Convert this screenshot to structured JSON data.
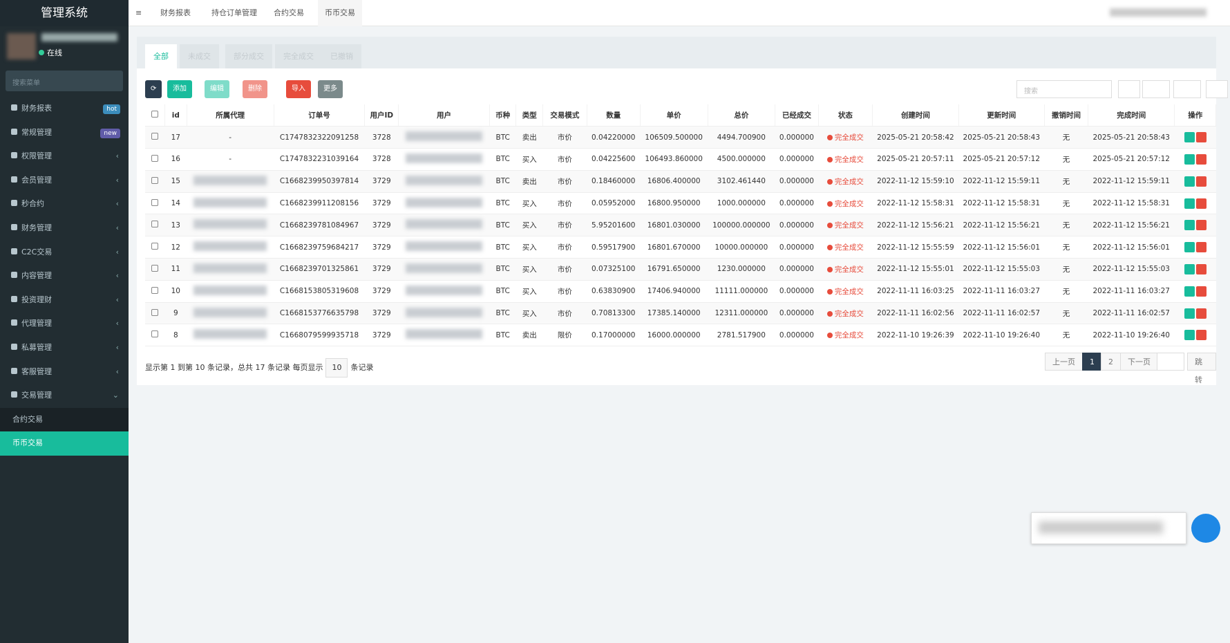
{
  "sidebar": {
    "title": "管理系统",
    "status": "在线",
    "search_placeholder": "搜索菜单",
    "menu": [
      {
        "label": "财务报表",
        "badge": "hot"
      },
      {
        "label": "常规管理",
        "badge": "new"
      },
      {
        "label": "权限管理"
      },
      {
        "label": "会员管理"
      },
      {
        "label": "秒合约"
      },
      {
        "label": "财务管理"
      },
      {
        "label": "C2C交易"
      },
      {
        "label": "内容管理"
      },
      {
        "label": "投资理财"
      },
      {
        "label": "代理管理"
      },
      {
        "label": "私募管理"
      },
      {
        "label": "客服管理"
      },
      {
        "label": "交易管理"
      }
    ],
    "submenu": [
      "合约交易",
      "币币交易"
    ]
  },
  "topbar": {
    "tabs": [
      "财务报表",
      "持仓订单管理",
      "合约交易",
      "币币交易"
    ]
  },
  "filter_tabs": [
    "全部",
    "未成交",
    "部分成交",
    "完全成交",
    "已撤销"
  ],
  "toolbar": {
    "buttons": [
      "添加",
      "编辑",
      "删除",
      "导入",
      "更多"
    ],
    "search_placeholder": "搜索"
  },
  "table": {
    "columns": [
      "id",
      "所属代理",
      "订单号",
      "用户ID",
      "用户",
      "币种",
      "类型",
      "交易模式",
      "数量",
      "单价",
      "总价",
      "已经成交",
      "状态",
      "创建时间",
      "更新时间",
      "撤销时间",
      "完成时间",
      "操作"
    ],
    "rows": [
      [
        "17",
        "-",
        "C1747832322091258",
        "3728",
        null,
        "BTC",
        "卖出",
        "市价",
        "0.04220000",
        "106509.500000",
        "4494.700900",
        "0.000000",
        "完全成交",
        "2025-05-21 20:58:42",
        "2025-05-21 20:58:43",
        "无",
        "2025-05-21 20:58:43"
      ],
      [
        "16",
        "-",
        "C1747832231039164",
        "3728",
        null,
        "BTC",
        "买入",
        "市价",
        "0.04225600",
        "106493.860000",
        "4500.000000",
        "0.000000",
        "完全成交",
        "2025-05-21 20:57:11",
        "2025-05-21 20:57:12",
        "无",
        "2025-05-21 20:57:12"
      ],
      [
        "15",
        null,
        "C1668239950397814",
        "3729",
        null,
        "BTC",
        "卖出",
        "市价",
        "0.18460000",
        "16806.400000",
        "3102.461440",
        "0.000000",
        "完全成交",
        "2022-11-12 15:59:10",
        "2022-11-12 15:59:11",
        "无",
        "2022-11-12 15:59:11"
      ],
      [
        "14",
        null,
        "C1668239911208156",
        "3729",
        null,
        "BTC",
        "买入",
        "市价",
        "0.05952000",
        "16800.950000",
        "1000.000000",
        "0.000000",
        "完全成交",
        "2022-11-12 15:58:31",
        "2022-11-12 15:58:31",
        "无",
        "2022-11-12 15:58:31"
      ],
      [
        "13",
        null,
        "C1668239781084967",
        "3729",
        null,
        "BTC",
        "买入",
        "市价",
        "5.95201600",
        "16801.030000",
        "100000.000000",
        "0.000000",
        "完全成交",
        "2022-11-12 15:56:21",
        "2022-11-12 15:56:21",
        "无",
        "2022-11-12 15:56:21"
      ],
      [
        "12",
        null,
        "C1668239759684217",
        "3729",
        null,
        "BTC",
        "买入",
        "市价",
        "0.59517900",
        "16801.670000",
        "10000.000000",
        "0.000000",
        "完全成交",
        "2022-11-12 15:55:59",
        "2022-11-12 15:56:01",
        "无",
        "2022-11-12 15:56:01"
      ],
      [
        "11",
        null,
        "C1668239701325861",
        "3729",
        null,
        "BTC",
        "买入",
        "市价",
        "0.07325100",
        "16791.650000",
        "1230.000000",
        "0.000000",
        "完全成交",
        "2022-11-12 15:55:01",
        "2022-11-12 15:55:03",
        "无",
        "2022-11-12 15:55:03"
      ],
      [
        "10",
        null,
        "C1668153805319608",
        "3729",
        null,
        "BTC",
        "买入",
        "市价",
        "0.63830900",
        "17406.940000",
        "11111.000000",
        "0.000000",
        "完全成交",
        "2022-11-11 16:03:25",
        "2022-11-11 16:03:27",
        "无",
        "2022-11-11 16:03:27"
      ],
      [
        "9",
        null,
        "C1668153776635798",
        "3729",
        null,
        "BTC",
        "买入",
        "市价",
        "0.70813300",
        "17385.140000",
        "12311.000000",
        "0.000000",
        "完全成交",
        "2022-11-11 16:02:56",
        "2022-11-11 16:02:57",
        "无",
        "2022-11-11 16:02:57"
      ],
      [
        "8",
        null,
        "C1668079599935718",
        "3729",
        null,
        "BTC",
        "卖出",
        "限价",
        "0.17000000",
        "16000.000000",
        "2781.517900",
        "0.000000",
        "完全成交",
        "2022-11-10 19:26:39",
        "2022-11-10 19:26:40",
        "无",
        "2022-11-10 19:26:40"
      ]
    ]
  },
  "pagination": {
    "summary": "显示第 1 到第 10 条记录，总共 17 条记录 每页显示",
    "page_size": "10",
    "suffix": "条记录",
    "prev": "上一页",
    "pages": [
      "1",
      "2"
    ],
    "next": "下一页",
    "jump": "跳转"
  }
}
